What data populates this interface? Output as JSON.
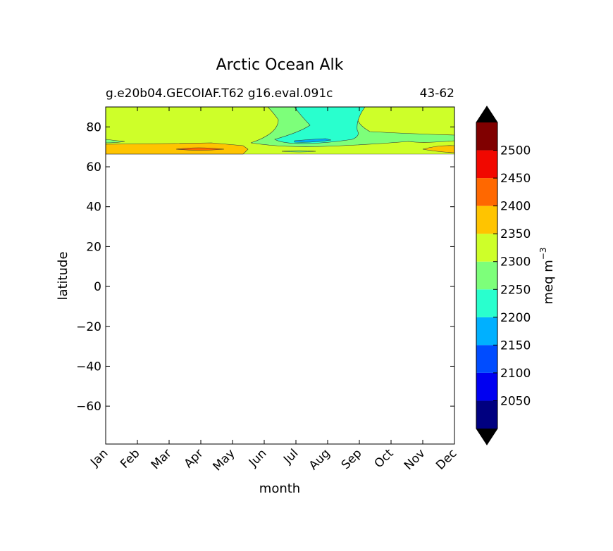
{
  "chart_data": {
    "type": "heatmap",
    "title": "Arctic Ocean Alk",
    "subtitle_left": "g.e20b04.GECOIAF.T62 g16.eval.091c",
    "subtitle_right": "43-62",
    "xlabel": "month",
    "ylabel": "latitude",
    "x_categories": [
      "Jan",
      "Feb",
      "Mar",
      "Apr",
      "May",
      "Jun",
      "Jul",
      "Aug",
      "Sep",
      "Oct",
      "Nov",
      "Dec"
    ],
    "y_ticks": [
      "80",
      "60",
      "40",
      "20",
      "0",
      "−20",
      "−40",
      "−60"
    ],
    "y_tick_values": [
      80,
      60,
      40,
      20,
      0,
      -20,
      -40,
      -60
    ],
    "ylim": [
      -79,
      90
    ],
    "data_extent_lat": [
      66,
      90
    ],
    "grid": false,
    "colorbar": {
      "label": "meq m",
      "label_exponent": "−3",
      "placement": "right",
      "extend": "both",
      "levels": [
        2000,
        2050,
        2100,
        2150,
        2200,
        2250,
        2300,
        2350,
        2400,
        2450,
        2500,
        2550
      ],
      "tick_labels": [
        "2050",
        "2100",
        "2150",
        "2200",
        "2250",
        "2300",
        "2350",
        "2400",
        "2450",
        "2500"
      ],
      "colors": [
        "#000080",
        "#0000f1",
        "#004cff",
        "#00b0ff",
        "#29ffce",
        "#7dff7a",
        "#ceff29",
        "#ffc400",
        "#ff6800",
        "#f10800",
        "#800000"
      ],
      "under_color": "#000000",
      "over_color": "#000000"
    },
    "regions": [
      {
        "level": "2300-2350",
        "description": "most of Arctic band 71-90N, Jan-Jun and Sep-Dec"
      },
      {
        "level": "2250-2300",
        "description": "Jun-Jul and Sep-Dec transition bands"
      },
      {
        "level": "2200-2250",
        "description": "Jul-Sep core, 72-90N"
      },
      {
        "level": "2150-2200",
        "description": "small patch near 73N, Jul-Aug"
      },
      {
        "level": "2350-2400",
        "description": "southern edge 66-70N, Jan-May and Dec"
      },
      {
        "level": "2400-2450",
        "description": "small patch near 68N, Apr-May"
      }
    ]
  }
}
